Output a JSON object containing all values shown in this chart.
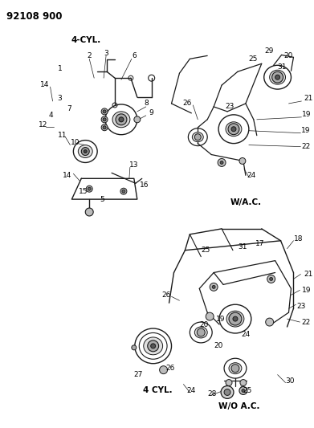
{
  "title": "92108 900",
  "bg": "#ffffff",
  "lc": "#1a1a1a",
  "tc": "#000000",
  "figsize": [
    3.91,
    5.33
  ],
  "dpi": 100,
  "top_left_label": "4-CYL.",
  "top_right_label": "W/A.C.",
  "bottom_label1": "4 CYL.",
  "bottom_label2": "W/O A.C.",
  "top_left_nums": [
    [
      62,
      104,
      "14",
      "right"
    ],
    [
      78,
      84,
      "1",
      "right"
    ],
    [
      112,
      68,
      "2",
      "center"
    ],
    [
      133,
      65,
      "3",
      "center"
    ],
    [
      168,
      68,
      "6",
      "center"
    ],
    [
      78,
      122,
      "3",
      "right"
    ],
    [
      90,
      135,
      "7",
      "right"
    ],
    [
      181,
      128,
      "8",
      "left"
    ],
    [
      187,
      140,
      "9",
      "left"
    ],
    [
      100,
      177,
      "10",
      "right"
    ],
    [
      84,
      168,
      "11",
      "right"
    ],
    [
      60,
      155,
      "12",
      "right"
    ],
    [
      67,
      143,
      "4",
      "right"
    ],
    [
      162,
      205,
      "13",
      "left"
    ],
    [
      128,
      248,
      "5",
      "center"
    ],
    [
      110,
      238,
      "15",
      "right"
    ],
    [
      175,
      230,
      "16",
      "left"
    ],
    [
      90,
      218,
      "14",
      "right"
    ]
  ],
  "top_right_nums": [
    [
      356,
      68,
      "20",
      "left"
    ],
    [
      348,
      82,
      "31",
      "left"
    ],
    [
      332,
      62,
      "29",
      "left"
    ],
    [
      312,
      72,
      "25",
      "left"
    ],
    [
      381,
      122,
      "21",
      "left"
    ],
    [
      240,
      128,
      "26",
      "right"
    ],
    [
      379,
      142,
      "19",
      "left"
    ],
    [
      288,
      132,
      "23",
      "center"
    ],
    [
      378,
      162,
      "19",
      "left"
    ],
    [
      378,
      182,
      "22",
      "left"
    ],
    [
      315,
      218,
      "24",
      "center"
    ]
  ],
  "bottom_nums": [
    [
      258,
      312,
      "25",
      "center"
    ],
    [
      304,
      308,
      "31",
      "center"
    ],
    [
      326,
      304,
      "17",
      "center"
    ],
    [
      368,
      298,
      "18",
      "left"
    ],
    [
      381,
      342,
      "21",
      "left"
    ],
    [
      379,
      362,
      "19",
      "left"
    ],
    [
      214,
      368,
      "26",
      "right"
    ],
    [
      378,
      402,
      "22",
      "left"
    ],
    [
      372,
      382,
      "23",
      "left"
    ],
    [
      256,
      405,
      "20",
      "center"
    ],
    [
      277,
      398,
      "19",
      "center"
    ],
    [
      308,
      418,
      "24",
      "center"
    ],
    [
      274,
      432,
      "20",
      "center"
    ],
    [
      179,
      468,
      "27",
      "right"
    ],
    [
      208,
      460,
      "26",
      "left"
    ],
    [
      240,
      488,
      "24",
      "center"
    ],
    [
      266,
      492,
      "28",
      "center"
    ],
    [
      310,
      488,
      "25",
      "center"
    ],
    [
      358,
      476,
      "30",
      "left"
    ]
  ]
}
